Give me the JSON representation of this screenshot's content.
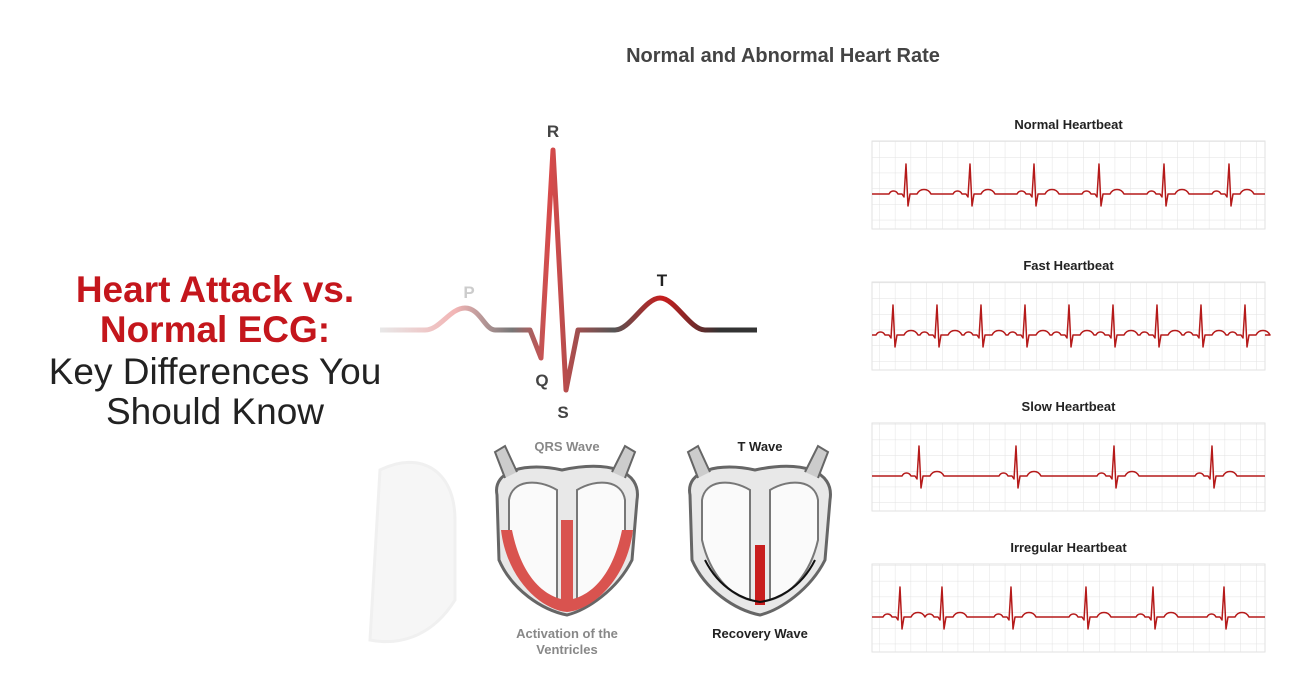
{
  "headline": {
    "emphasis": [
      "Heart Attack vs.",
      "Normal ECG:"
    ],
    "rest": [
      "Key Differences You",
      "Should Know"
    ]
  },
  "diagram": {
    "title": "Normal and Abnormal Heart Rate",
    "wave_labels": {
      "R": "R",
      "P": "P",
      "T": "T",
      "Q": "Q",
      "S": "S"
    },
    "hearts": [
      {
        "title": "QRS Wave",
        "caption": [
          "Activation of the",
          "Ventricles"
        ]
      },
      {
        "title": "T Wave",
        "caption": [
          "Recovery Wave"
        ]
      }
    ],
    "strips": [
      "Normal Heartbeat",
      "Fast Heartbeat",
      "Slow Heartbeat",
      "Irregular Heartbeat"
    ]
  }
}
